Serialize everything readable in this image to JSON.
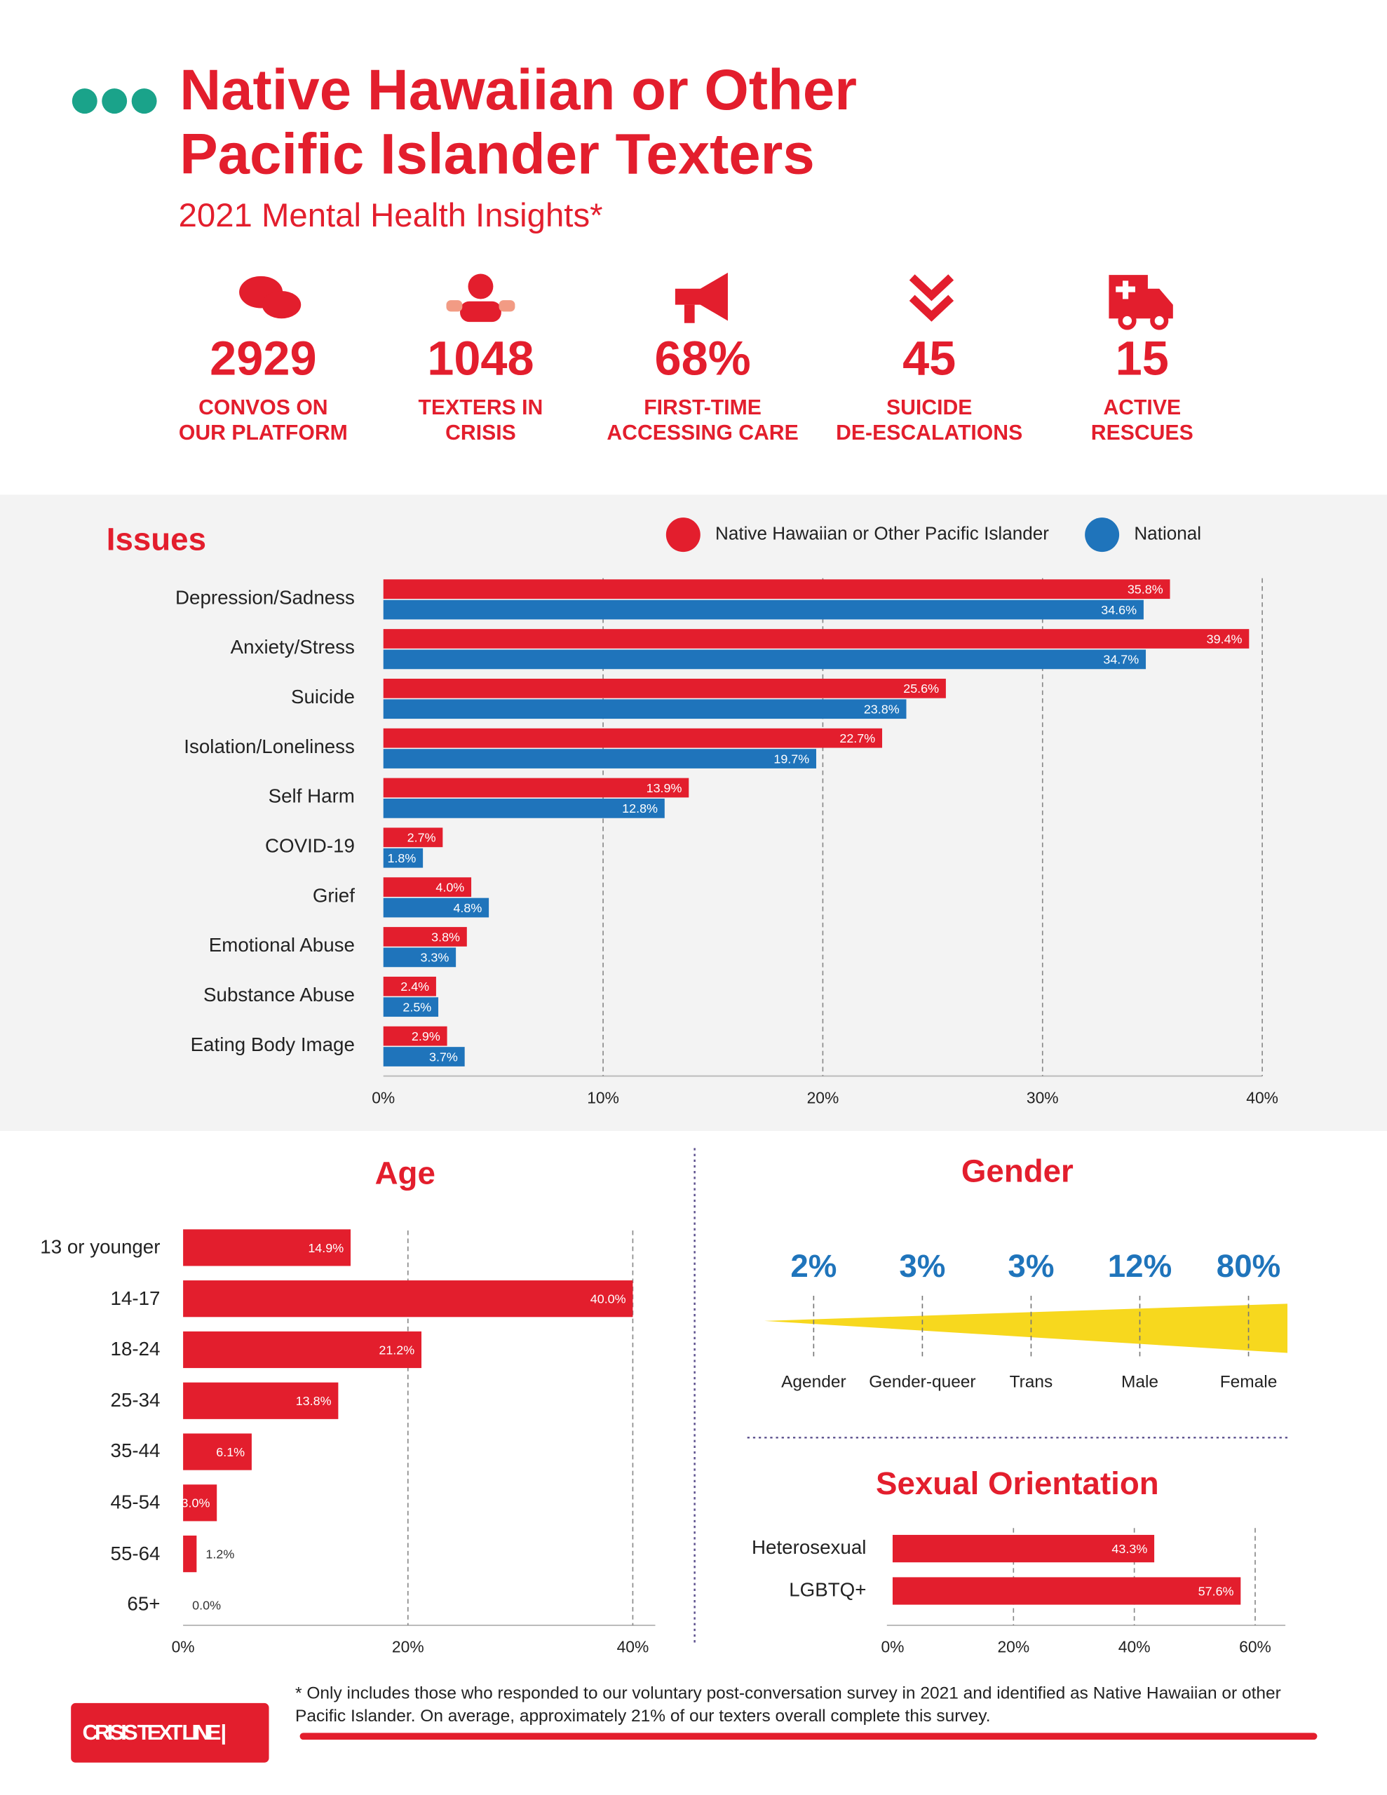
{
  "header": {
    "title": [
      "Native Hawaiian or Other",
      "Pacific Islander Texters"
    ],
    "subtitle": "2021 Mental Health Insights*"
  },
  "stats": [
    {
      "value": "2929",
      "label": [
        "CONVOS ON",
        "OUR PLATFORM"
      ]
    },
    {
      "value": "1048",
      "label": [
        "TEXTERS IN",
        "CRISIS"
      ]
    },
    {
      "value": "68%",
      "label": [
        "FIRST-TIME",
        "ACCESSING CARE"
      ]
    },
    {
      "value": "45",
      "label": [
        "SUICIDE",
        "DE-ESCALATIONS"
      ]
    },
    {
      "value": "15",
      "label": [
        "ACTIVE",
        "RESCUES"
      ]
    }
  ],
  "chart_data": [
    {
      "type": "bar",
      "title": "Issues",
      "categories": [
        "Depression/Sadness",
        "Anxiety/Stress",
        "Suicide",
        "Isolation/Loneliness",
        "Self Harm",
        "COVID-19",
        "Grief",
        "Emotional Abuse",
        "Substance Abuse",
        "Eating Body Image"
      ],
      "series": [
        {
          "name": "Native Hawaiian or Other Pacific Islander",
          "color": "#e31e2d",
          "values": [
            35.8,
            39.4,
            25.6,
            22.7,
            13.9,
            2.7,
            4.0,
            3.8,
            2.4,
            2.9
          ],
          "value_labels": [
            "35.8%",
            "39.4%",
            "25.6%",
            "22.7%",
            "13.9%",
            "2.7%",
            "4.0%",
            "3.8%",
            "2.4%",
            "2.9%"
          ]
        },
        {
          "name": "National",
          "color": "#1f74bb",
          "values": [
            34.6,
            34.7,
            23.8,
            19.7,
            12.8,
            1.8,
            4.8,
            3.3,
            2.5,
            3.7
          ],
          "value_labels": [
            "34.6%",
            "34.7%",
            "23.8%",
            "19.7%",
            "12.8%",
            "1.8%",
            "4.8%",
            "3.3%",
            "2.5%",
            "3.7%"
          ]
        }
      ],
      "xlim": [
        0,
        40
      ],
      "xticks": [
        {
          "value": 0,
          "label": "0%"
        },
        {
          "value": 10,
          "label": "10%"
        },
        {
          "value": 20,
          "label": "20%"
        },
        {
          "value": 30,
          "label": "30%"
        },
        {
          "value": 40,
          "label": "40%"
        }
      ],
      "grid": true
    },
    {
      "type": "bar",
      "title": "Age",
      "categories": [
        "13 or younger",
        "14-17",
        "18-24",
        "25-34",
        "35-44",
        "45-54",
        "55-64",
        "65+"
      ],
      "values": [
        14.9,
        40.0,
        21.2,
        13.8,
        6.1,
        3.0,
        1.2,
        0.0
      ],
      "value_labels": [
        "14.9%",
        "40.0%",
        "21.2%",
        "13.8%",
        "6.1%",
        "3.0%",
        "1.2%",
        "0.0%"
      ],
      "color": "#e31e2d",
      "xlim": [
        0,
        42
      ],
      "xticks": [
        {
          "value": 0,
          "label": "0%"
        },
        {
          "value": 20,
          "label": "20%"
        },
        {
          "value": 40,
          "label": "40%"
        }
      ],
      "grid": true
    },
    {
      "type": "scale",
      "title": "Gender",
      "categories": [
        "Agender",
        "Gender-queer",
        "Trans",
        "Male",
        "Female"
      ],
      "values": [
        2,
        3,
        3,
        12,
        80
      ],
      "value_labels": [
        "2%",
        "3%",
        "3%",
        "12%",
        "80%"
      ],
      "color": "#f7d81e"
    },
    {
      "type": "bar",
      "title": "Sexual Orientation",
      "categories": [
        "Heterosexual",
        "LGBTQ+"
      ],
      "values": [
        43.3,
        57.6
      ],
      "value_labels": [
        "43.3%",
        "57.6%"
      ],
      "color": "#e31e2d",
      "xlim": [
        0,
        65
      ],
      "xticks": [
        {
          "value": 0,
          "label": "0%"
        },
        {
          "value": 20,
          "label": "20%"
        },
        {
          "value": 40,
          "label": "40%"
        },
        {
          "value": 60,
          "label": "60%"
        }
      ],
      "grid": true
    }
  ],
  "footer": {
    "note": "* Only includes those who responded to our voluntary post-conversation survey in 2021 and identified as Native Hawaiian or other Pacific Islander. On average, approximately 21% of our texters overall complete this survey.",
    "logo": "CRISIS TEXT LINE |"
  }
}
